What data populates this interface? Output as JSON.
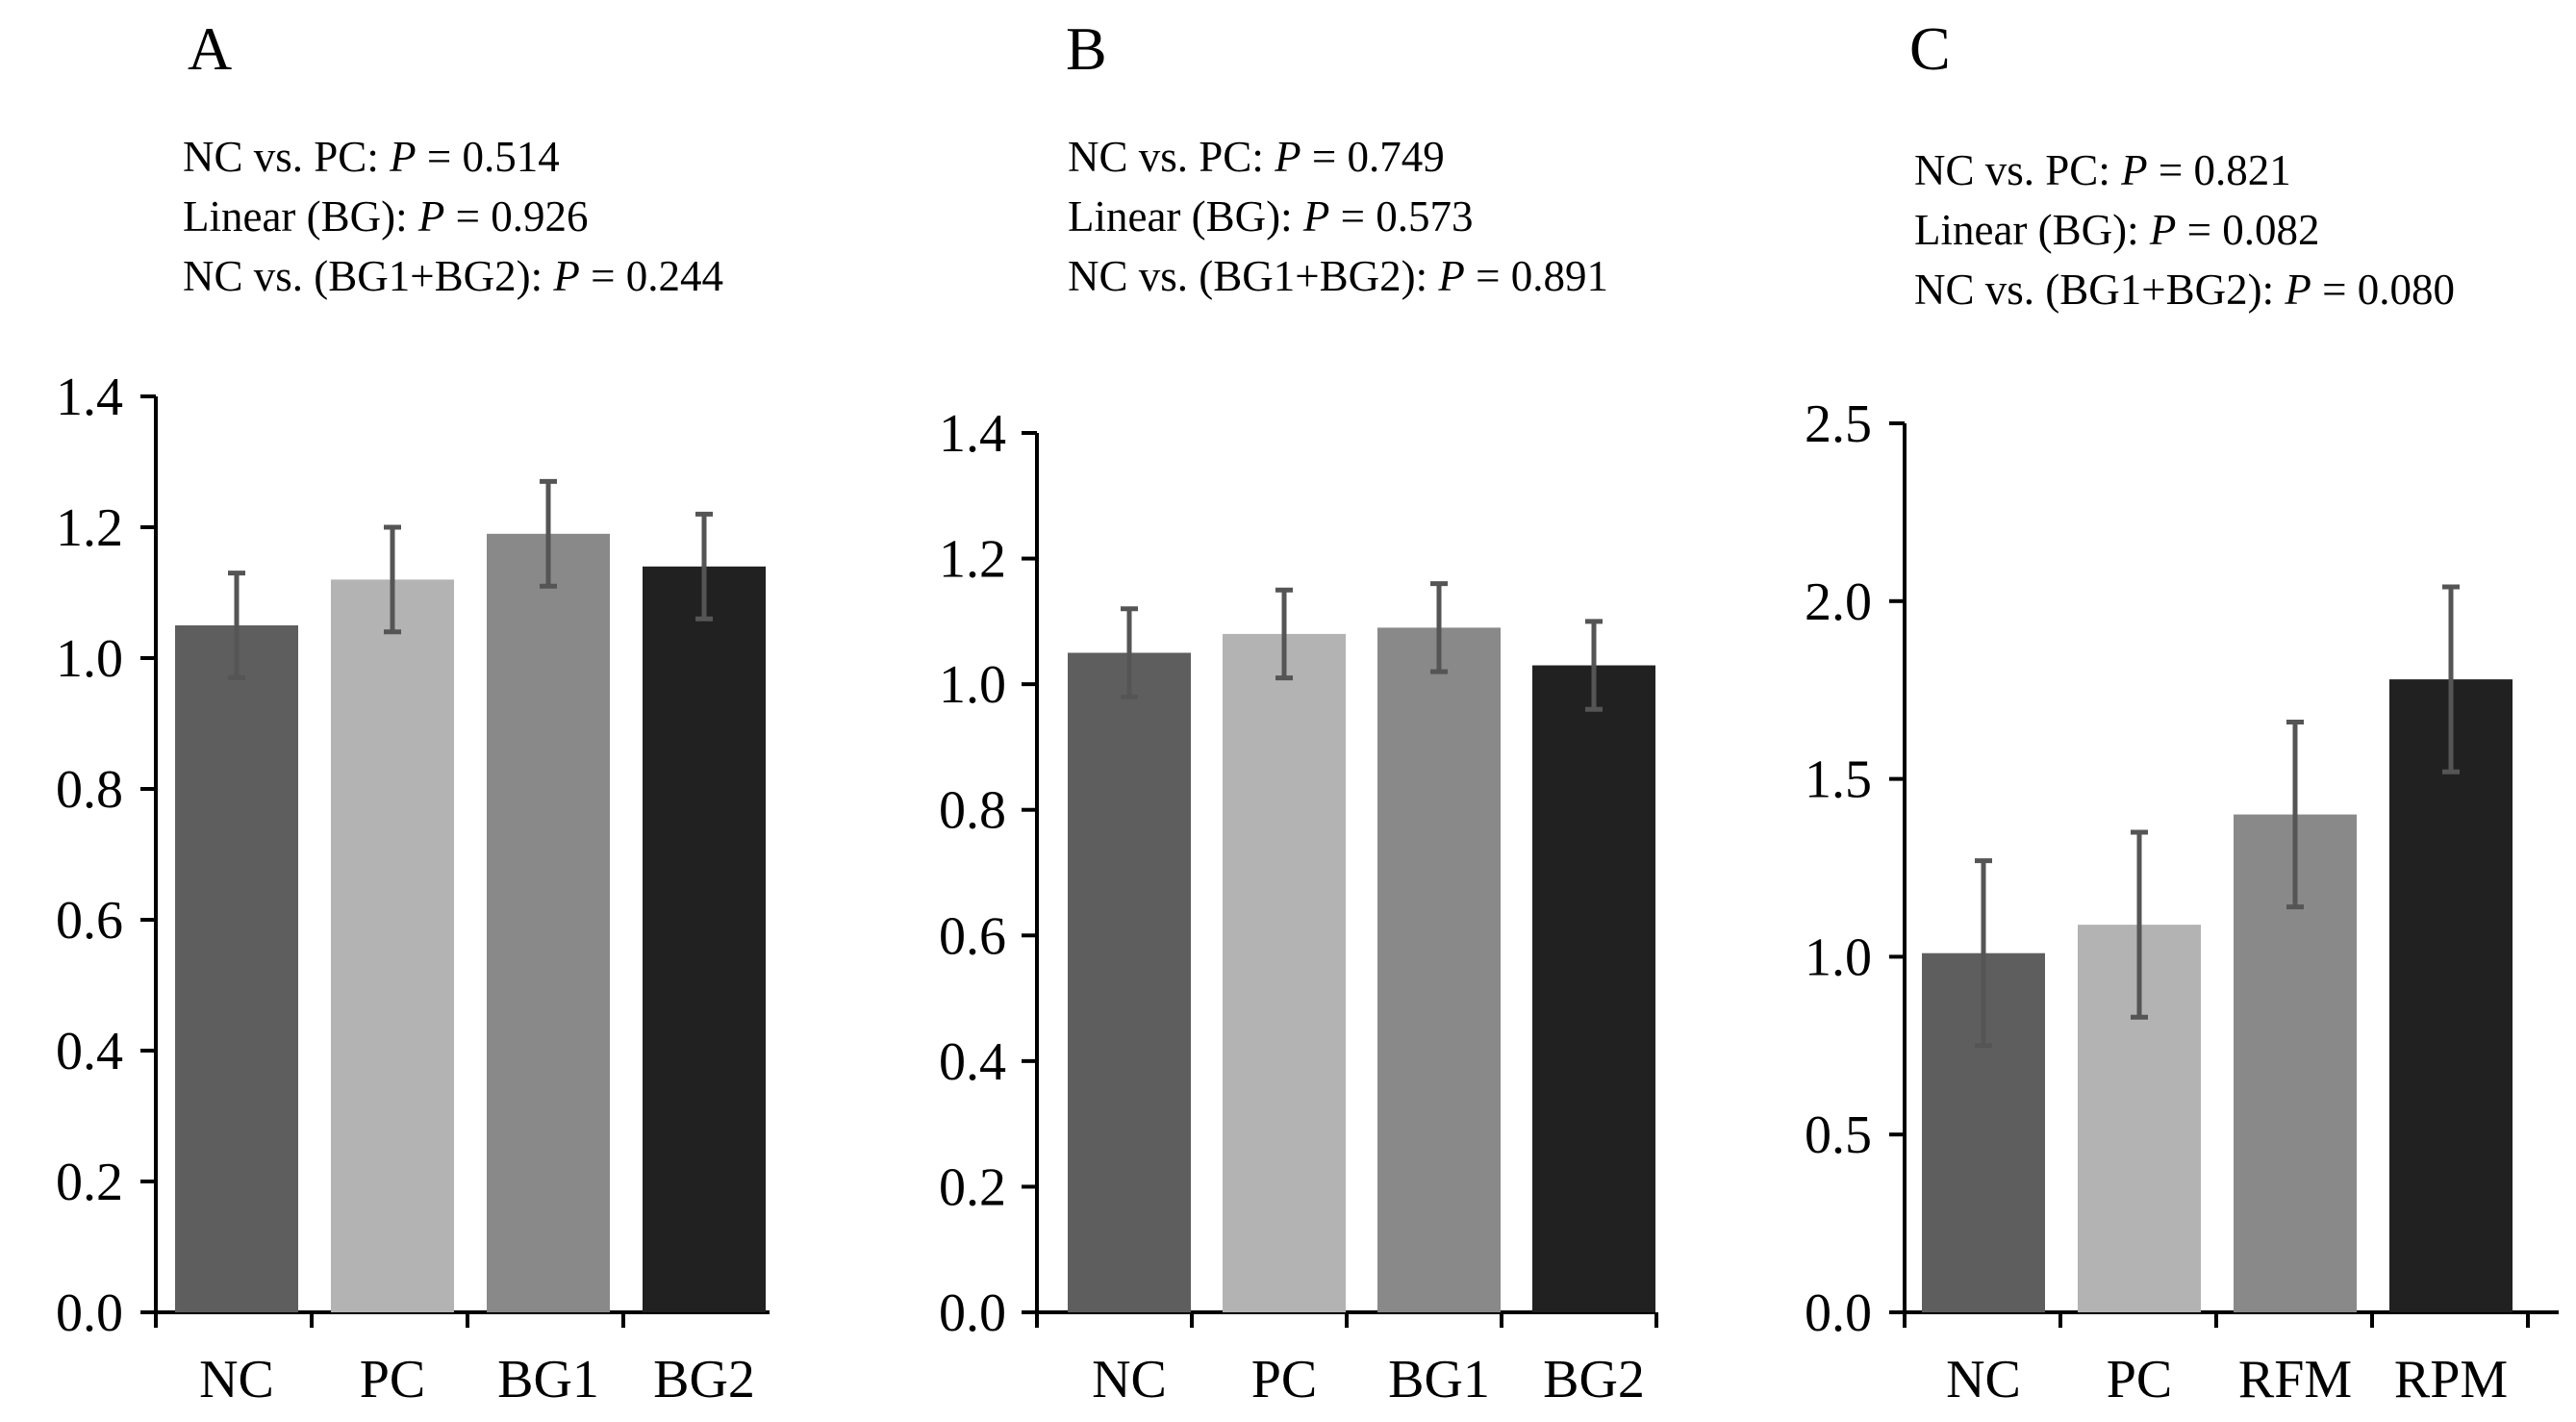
{
  "colors": {
    "NC": "#5e5e5e",
    "PC": "#b3b3b3",
    "third": "#898989",
    "fourth": "#212121",
    "error_bar": "#555555",
    "axis": "#000000"
  },
  "chart_data": [
    {
      "type": "bar",
      "panel": "A",
      "stats": [
        {
          "label": "NC vs. PC: ",
          "p": "P",
          "value": " = 0.514"
        },
        {
          "label": "Linear (BG): ",
          "p": "P",
          "value": " = 0.926"
        },
        {
          "label": "NC vs. (BG1+BG2): ",
          "p": "P",
          "value": " = 0.244"
        }
      ],
      "categories": [
        "NC",
        "PC",
        "BG1",
        "BG2"
      ],
      "values": [
        1.05,
        1.12,
        1.19,
        1.14
      ],
      "errors": [
        0.08,
        0.08,
        0.08,
        0.08
      ],
      "ylim": [
        0,
        1.4
      ],
      "yticks": [
        "0.0",
        "0.2",
        "0.4",
        "0.6",
        "0.8",
        "1.0",
        "1.2",
        "1.4"
      ],
      "ytick_values": [
        0,
        0.2,
        0.4,
        0.6,
        0.8,
        1.0,
        1.2,
        1.4
      ],
      "xlabel": "",
      "ylabel": ""
    },
    {
      "type": "bar",
      "panel": "B",
      "stats": [
        {
          "label": "NC vs. PC: ",
          "p": "P",
          "value": " = 0.749"
        },
        {
          "label": "Linear (BG): ",
          "p": "P",
          "value": " = 0.573"
        },
        {
          "label": "NC vs. (BG1+BG2): ",
          "p": "P",
          "value": " = 0.891"
        }
      ],
      "categories": [
        "NC",
        "PC",
        "BG1",
        "BG2"
      ],
      "values": [
        1.05,
        1.08,
        1.09,
        1.03
      ],
      "errors": [
        0.07,
        0.07,
        0.07,
        0.07
      ],
      "ylim": [
        0,
        1.4
      ],
      "yticks": [
        "0.0",
        "0.2",
        "0.4",
        "0.6",
        "0.8",
        "1.0",
        "1.2",
        "1.4"
      ],
      "ytick_values": [
        0,
        0.2,
        0.4,
        0.6,
        0.8,
        1.0,
        1.2,
        1.4
      ],
      "xlabel": "",
      "ylabel": ""
    },
    {
      "type": "bar",
      "panel": "C",
      "stats": [
        {
          "label": "NC vs. PC: ",
          "p": "P",
          "value": " = 0.821"
        },
        {
          "label": "Linear (BG): ",
          "p": "P",
          "value": " = 0.082"
        },
        {
          "label": "NC vs. (BG1+BG2): ",
          "p": "P",
          "value": " = 0.080"
        }
      ],
      "categories": [
        "NC",
        "PC",
        "RFM",
        "RPM"
      ],
      "values": [
        1.01,
        1.09,
        1.4,
        1.78
      ],
      "errors": [
        0.26,
        0.26,
        0.26,
        0.26
      ],
      "ylim": [
        0,
        2.5
      ],
      "yticks": [
        "0.0",
        "0.5",
        "1.0",
        "1.5",
        "2.0",
        "2.5"
      ],
      "ytick_values": [
        0,
        0.5,
        1.0,
        1.5,
        2.0,
        2.5
      ],
      "xlabel": "",
      "ylabel": ""
    }
  ]
}
